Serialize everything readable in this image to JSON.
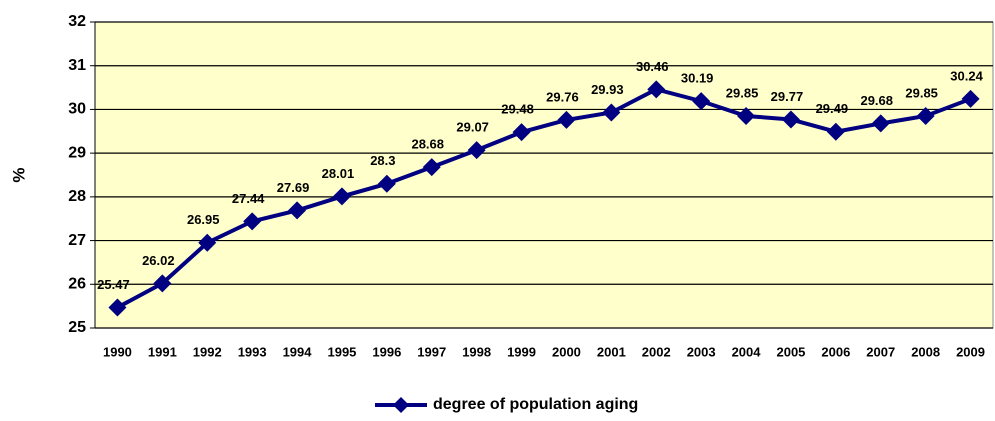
{
  "chart_data": {
    "type": "line",
    "y_label": "%",
    "categories": [
      "1990",
      "1991",
      "1992",
      "1993",
      "1994",
      "1995",
      "1996",
      "1997",
      "1998",
      "1999",
      "2000",
      "2001",
      "2002",
      "2003",
      "2004",
      "2005",
      "2006",
      "2007",
      "2008",
      "2009"
    ],
    "series": [
      {
        "name": "degree of population aging",
        "color": "#000080",
        "values": [
          25.47,
          26.02,
          26.95,
          27.44,
          27.69,
          28.01,
          28.3,
          28.68,
          29.07,
          29.48,
          29.76,
          29.93,
          30.46,
          30.19,
          29.85,
          29.77,
          29.49,
          29.68,
          29.85,
          30.24
        ]
      }
    ],
    "ylim": [
      25,
      32
    ],
    "yticks": [
      25,
      26,
      27,
      28,
      29,
      30,
      31,
      32
    ],
    "grid": true,
    "plot_background": "#FFFFCC",
    "legend": "bottom"
  }
}
